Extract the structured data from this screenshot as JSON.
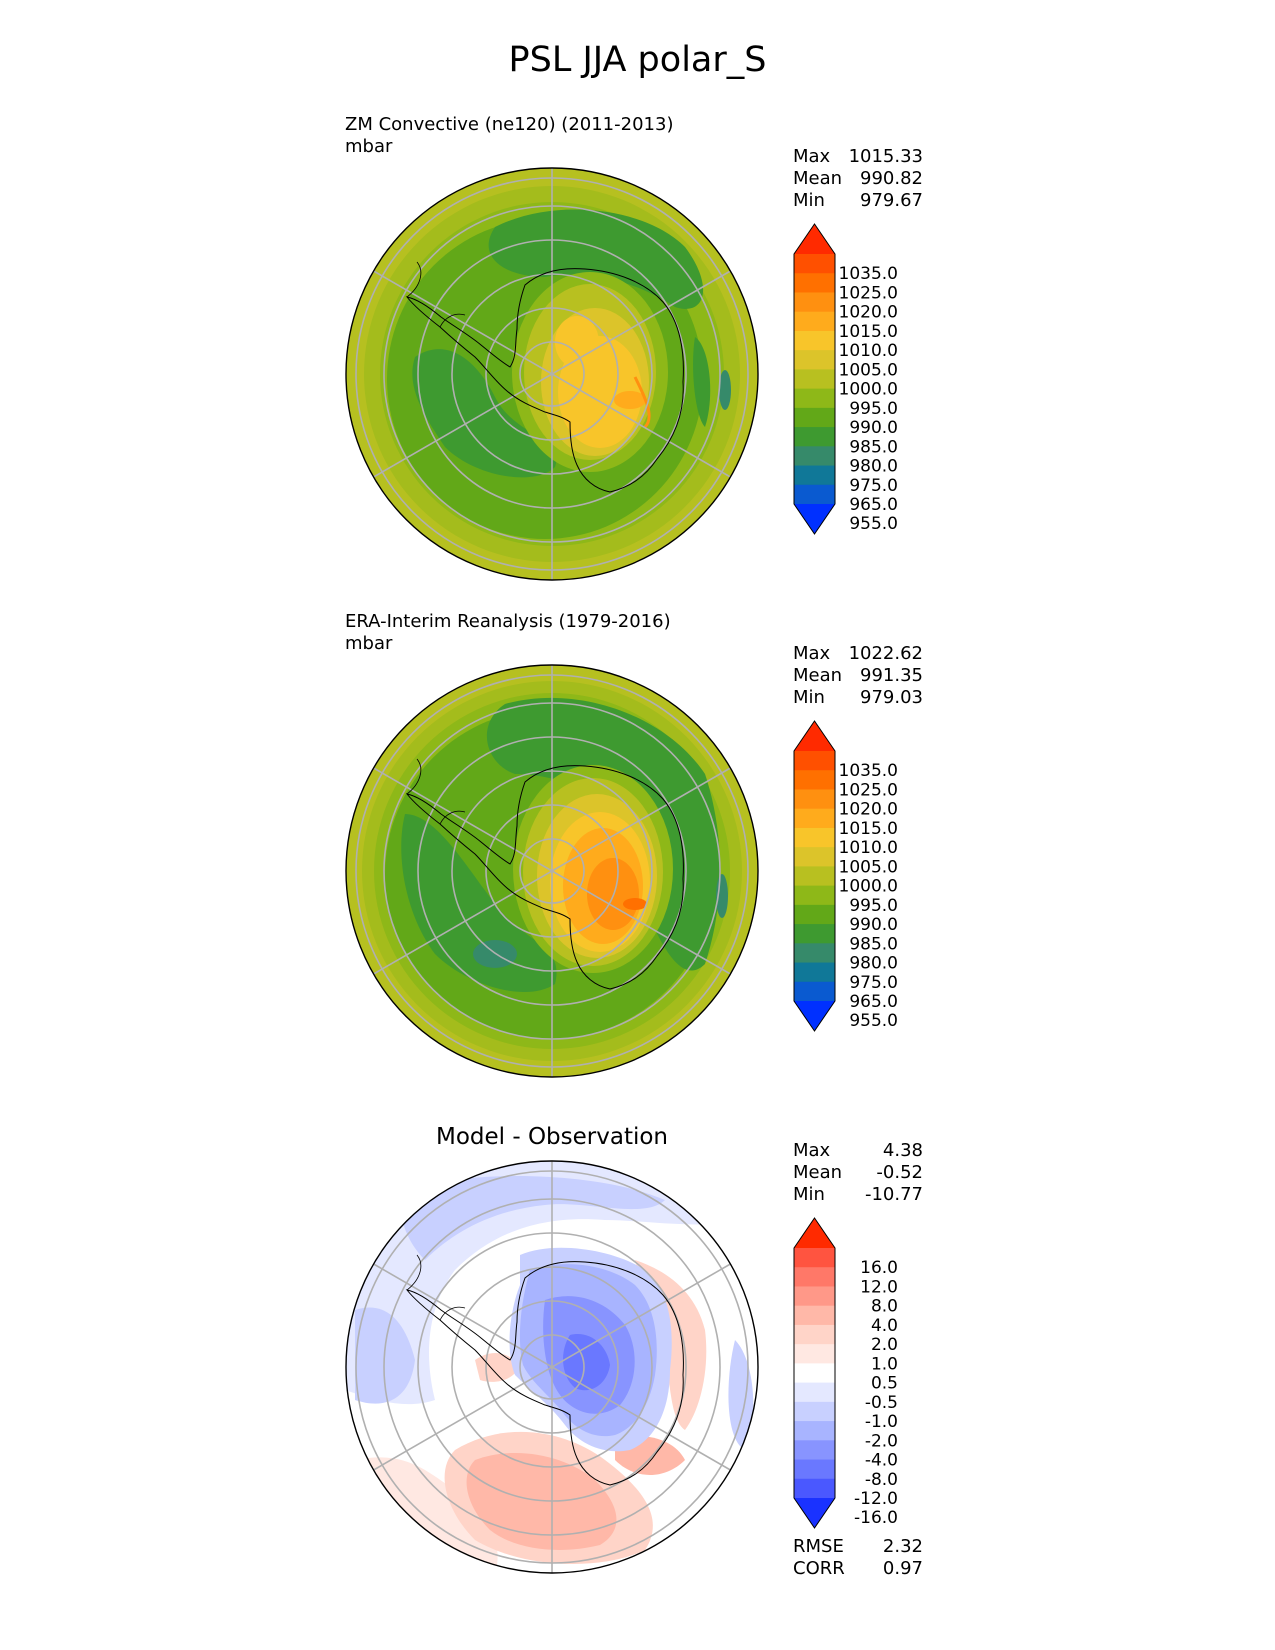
{
  "title": "PSL JJA polar_S",
  "panels": [
    {
      "id": "test",
      "title_line1": "ZM Convective (ne120) (2011-2013)",
      "title_line2": "mbar",
      "stats": [
        {
          "label": "Max",
          "value": "1015.33"
        },
        {
          "label": "Mean",
          "value": "990.82"
        },
        {
          "label": "Min",
          "value": "979.67"
        }
      ],
      "colorbar": {
        "ticks": [
          "1035.0",
          "1025.0",
          "1020.0",
          "1015.0",
          "1010.0",
          "1005.0",
          "1000.0",
          "995.0",
          "990.0",
          "985.0",
          "980.0",
          "975.0",
          "965.0",
          "955.0"
        ],
        "colors": [
          "#ff2a00",
          "#ff5000",
          "#ff7000",
          "#ff9010",
          "#ffab1c",
          "#f8c52a",
          "#dcc42a",
          "#b8c020",
          "#8eb818",
          "#62a818",
          "#3e9a30",
          "#368a6a",
          "#107898",
          "#0a5ad0",
          "#0030ff"
        ]
      }
    },
    {
      "id": "reference",
      "title_line1": "ERA-Interim Reanalysis (1979-2016)",
      "title_line2": "mbar",
      "stats": [
        {
          "label": "Max",
          "value": "1022.62"
        },
        {
          "label": "Mean",
          "value": "991.35"
        },
        {
          "label": "Min",
          "value": "979.03"
        }
      ],
      "colorbar": {
        "ticks": [
          "1035.0",
          "1025.0",
          "1020.0",
          "1015.0",
          "1010.0",
          "1005.0",
          "1000.0",
          "995.0",
          "990.0",
          "985.0",
          "980.0",
          "975.0",
          "965.0",
          "955.0"
        ],
        "colors": [
          "#ff2a00",
          "#ff5000",
          "#ff7000",
          "#ff9010",
          "#ffab1c",
          "#f8c52a",
          "#dcc42a",
          "#b8c020",
          "#8eb818",
          "#62a818",
          "#3e9a30",
          "#368a6a",
          "#107898",
          "#0a5ad0",
          "#0030ff"
        ]
      }
    },
    {
      "id": "diff",
      "title_center": "Model - Observation",
      "stats": [
        {
          "label": "Max",
          "value": "4.38"
        },
        {
          "label": "Mean",
          "value": "-0.52"
        },
        {
          "label": "Min",
          "value": "-10.77"
        }
      ],
      "extra_stats": [
        {
          "label": "RMSE",
          "value": "2.32"
        },
        {
          "label": "CORR",
          "value": "0.97"
        }
      ],
      "colorbar": {
        "ticks": [
          "16.0",
          "12.0",
          "8.0",
          "4.0",
          "2.0",
          "1.0",
          "0.5",
          "-0.5",
          "-1.0",
          "-2.0",
          "-4.0",
          "-8.0",
          "-12.0",
          "-16.0"
        ],
        "colors": [
          "#ff2a00",
          "#ff5440",
          "#ff7868",
          "#ff9888",
          "#ffb8a8",
          "#ffd4c8",
          "#ffe8e2",
          "#ffffff",
          "#e4e8ff",
          "#c8d0ff",
          "#a8b4ff",
          "#8894ff",
          "#6a78ff",
          "#4a58ff",
          "#1a32ff"
        ]
      }
    }
  ]
}
